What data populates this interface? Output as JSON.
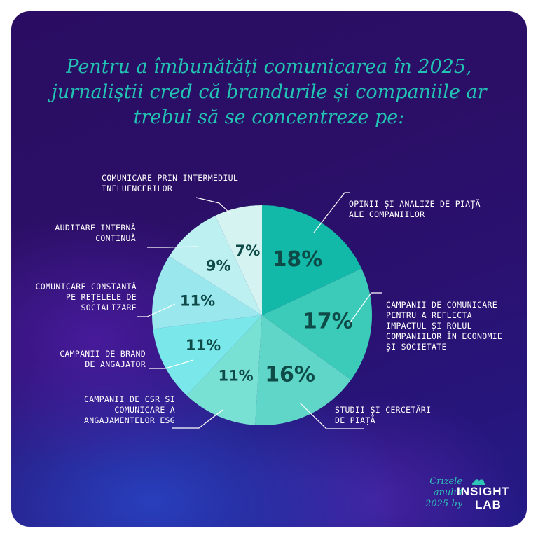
{
  "title_lines": [
    "Pentru a îmbunătăți comunicarea în 2025,",
    "jurnaliștii cred că brandurile și companiile ar",
    "trebui să se concentreze pe:"
  ],
  "colors": {
    "title": "#22c3b3",
    "background": "#2a0d63"
  },
  "chart_data": {
    "type": "pie",
    "unit": "%",
    "slices": [
      {
        "value": 18,
        "label": "18%",
        "category": [
          "OPINII ȘI ANALIZE DE PIAȚĂ",
          "ALE COMPANIILOR"
        ],
        "color": "#12b8a8"
      },
      {
        "value": 17,
        "label": "17%",
        "category": [
          "CAMPANII DE COMUNICARE",
          "PENTRU A REFLECTA",
          "IMPACTUL ȘI ROLUL",
          "COMPANIILOR ÎN ECONOMIE",
          "ȘI SOCIETATE"
        ],
        "color": "#3ccbb8"
      },
      {
        "value": 16,
        "label": "16%",
        "category": [
          "STUDII ȘI CERCETĂRI",
          "DE PIAȚĂ"
        ],
        "color": "#5fd6c8"
      },
      {
        "value": 11,
        "label": "11%",
        "category": [
          "CAMPANII DE CSR ȘI",
          "COMUNICARE A",
          "ANGAJAMENTELOR ESG"
        ],
        "color": "#79e1d3"
      },
      {
        "value": 11,
        "label": "11%",
        "category": [
          "CAMPANII DE BRAND",
          "DE ANGAJATOR"
        ],
        "color": "#7ae8ea"
      },
      {
        "value": 11,
        "label": "11%",
        "category": [
          "COMUNICARE CONSTANTĂ",
          "PE REȚELELE DE",
          "SOCIALIZARE"
        ],
        "color": "#9ae8ee"
      },
      {
        "value": 9,
        "label": "9%",
        "category": [
          "AUDITARE INTERNĂ",
          "CONTINUĂ"
        ],
        "color": "#bdf0f1"
      },
      {
        "value": 7,
        "label": "7%",
        "category": [
          "COMUNICARE PRIN INTERMEDIUL",
          "INFLUENCERILOR"
        ],
        "color": "#d4f3f1"
      }
    ]
  },
  "branding": {
    "italic_lines": [
      "Crizele",
      "anului",
      "2025 by"
    ],
    "logo_line1": "INSIGHT",
    "logo_line2": "LAB"
  }
}
